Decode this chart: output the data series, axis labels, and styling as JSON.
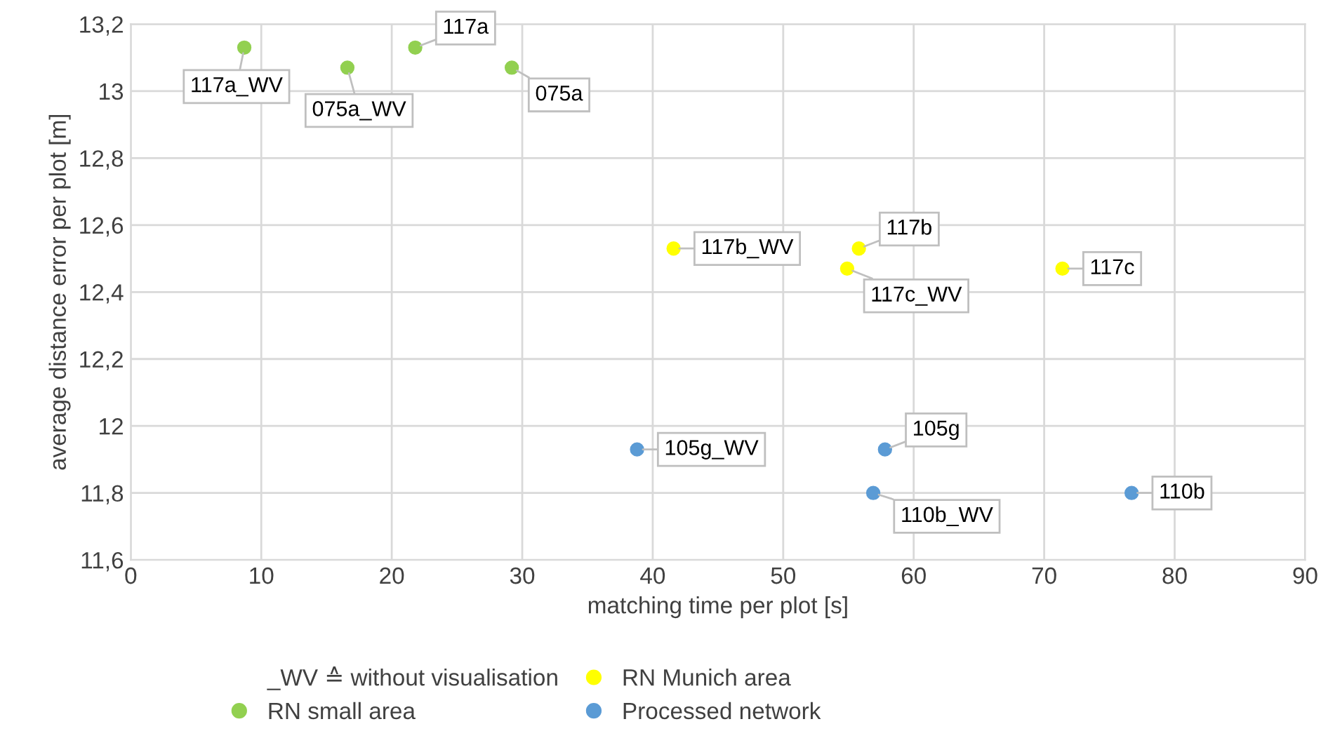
{
  "chart_data": {
    "type": "scatter",
    "xlabel": "matching time per plot [s]",
    "ylabel": "average distance error per plot [m]",
    "xlim": [
      0,
      90
    ],
    "xticks": [
      0,
      10,
      20,
      30,
      40,
      50,
      60,
      70,
      80,
      90
    ],
    "ylim": [
      11.6,
      13.2
    ],
    "yticks": [
      {
        "value": 11.6,
        "label": "11,6"
      },
      {
        "value": 11.8,
        "label": "11,8"
      },
      12,
      {
        "value": 12.2,
        "label": "12,2"
      },
      {
        "value": 12.4,
        "label": "12,4"
      },
      {
        "value": 12.6,
        "label": "12,6"
      },
      {
        "value": 12.8,
        "label": "12,8"
      },
      13,
      {
        "value": 13.2,
        "label": "13,2"
      }
    ],
    "grid": true,
    "legend": "bottom",
    "marker": "circle",
    "annotations": [
      "_WV ≙ without visualisation",
      {
        "text": "117a_WV",
        "x": 8.7,
        "y": 13.13
      },
      {
        "text": "075a_WV",
        "x": 16.6,
        "y": 13.07
      },
      {
        "text": "117a",
        "x": 21.8,
        "y": 13.13
      },
      {
        "text": "075a",
        "x": 29.2,
        "y": 13.07
      },
      {
        "text": "117b_WV",
        "x": 41.6,
        "y": 12.53
      },
      {
        "text": "117b",
        "x": 55.8,
        "y": 12.53
      },
      {
        "text": "117c_WV",
        "x": 54.9,
        "y": 12.47
      },
      {
        "text": "117c",
        "x": 71.4,
        "y": 12.47
      },
      {
        "text": "105g_WV",
        "x": 38.8,
        "y": 11.93
      },
      {
        "text": "105g",
        "x": 57.8,
        "y": 11.93
      },
      {
        "text": "110b_WV",
        "x": 56.9,
        "y": 11.8
      },
      {
        "text": "110b",
        "x": 76.7,
        "y": 11.8
      }
    ],
    "series": [
      {
        "name": "RN small area",
        "color": "#92d050",
        "x": [
          8.7,
          16.6,
          21.8,
          29.2
        ],
        "values": [
          13.13,
          13.07,
          13.13,
          13.07
        ]
      },
      {
        "name": "RN Munich area",
        "color": "#ffff00",
        "x": [
          41.6,
          55.8,
          54.9,
          71.4
        ],
        "values": [
          12.53,
          12.53,
          12.47,
          12.47
        ]
      },
      {
        "name": "Processed network",
        "color": "#5b9bd5",
        "x": [
          38.8,
          57.8,
          56.9,
          76.7
        ],
        "values": [
          11.93,
          11.93,
          11.8,
          11.8
        ]
      }
    ]
  }
}
